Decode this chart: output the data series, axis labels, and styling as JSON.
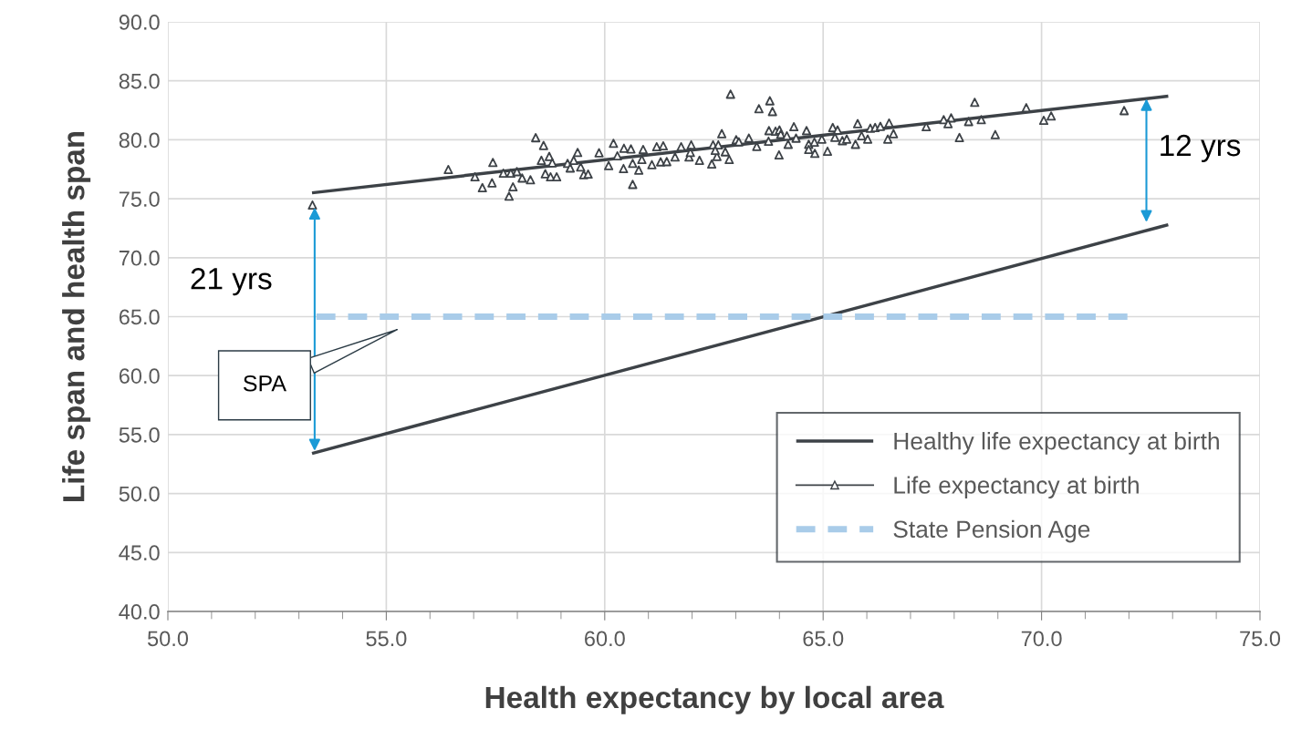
{
  "chart_data": {
    "type": "scatter",
    "xlabel": "Health expectancy by local area",
    "ylabel": "Life span and health span",
    "xlim": [
      50.0,
      75.0
    ],
    "xticks": [
      {
        "value": 50,
        "label": "50.0"
      },
      {
        "value": 55,
        "label": "55.0"
      },
      {
        "value": 60,
        "label": "60.0"
      },
      {
        "value": 65,
        "label": "65.0"
      },
      {
        "value": 70,
        "label": "70.0"
      },
      {
        "value": 75,
        "label": "75.0"
      }
    ],
    "ylim": [
      40.0,
      90.0
    ],
    "yticks": [
      {
        "value": 40,
        "label": "40.0"
      },
      {
        "value": 45,
        "label": "45.0"
      },
      {
        "value": 50,
        "label": "50.0"
      },
      {
        "value": 55,
        "label": "55.0"
      },
      {
        "value": 60,
        "label": "60.0"
      },
      {
        "value": 65,
        "label": "65.0"
      },
      {
        "value": 70,
        "label": "70.0"
      },
      {
        "value": 75,
        "label": "75.0"
      },
      {
        "value": 80,
        "label": "80.0"
      },
      {
        "value": 85,
        "label": "85.0"
      },
      {
        "value": 90,
        "label": "90.0"
      }
    ],
    "grid": true,
    "legend": "bottom right",
    "annotations": [
      "21 yrs",
      "12 yrs",
      "SPA"
    ],
    "series": [
      {
        "name": "Healthy life expectancy at birth",
        "type": "line",
        "color": "#3d4247",
        "marker": "none",
        "line_style": "solid",
        "x": [
          53.3,
          72.9
        ],
        "values": [
          53.4,
          72.8
        ]
      },
      {
        "name": "Life expectancy at birth",
        "type": "scatter",
        "color": "#3d4247",
        "marker": "triangle",
        "x": [
          53.31,
          56.42,
          57.03,
          57.2,
          57.44,
          57.42,
          57.68,
          57.81,
          57.9,
          57.85,
          57.99,
          58.11,
          58.3,
          58.42,
          58.6,
          58.55,
          58.73,
          58.8,
          58.64,
          58.76,
          58.9,
          59.15,
          59.29,
          59.38,
          59.21,
          59.45,
          59.52,
          59.62,
          59.87,
          60.2,
          60.29,
          60.09,
          60.44,
          60.6,
          60.88,
          60.43,
          60.64,
          60.78,
          60.64,
          60.85,
          61.08,
          61.19,
          61.34,
          61.28,
          61.42,
          61.61,
          61.75,
          61.93,
          61.98,
          61.96,
          62.17,
          62.45,
          62.48,
          62.6,
          62.57,
          62.53,
          62.76,
          62.85,
          62.68,
          62.88,
          63.01,
          63.07,
          63.3,
          63.48,
          63.53,
          63.78,
          63.84,
          63.76,
          63.91,
          64.0,
          63.75,
          63.99,
          64.03,
          64.17,
          64.2,
          64.33,
          64.38,
          64.62,
          64.67,
          64.8,
          64.67,
          64.81,
          64.97,
          65.1,
          65.22,
          65.33,
          65.27,
          65.44,
          65.54,
          65.74,
          65.79,
          65.88,
          66.02,
          66.08,
          66.19,
          66.31,
          66.51,
          66.61,
          66.48,
          67.36,
          67.76,
          67.93,
          67.86,
          68.33,
          68.47,
          68.62,
          68.12,
          68.94,
          69.65,
          70.05,
          70.22,
          71.89
        ],
        "values": [
          74.47,
          77.48,
          76.86,
          75.94,
          78.08,
          76.35,
          77.17,
          75.22,
          76.01,
          77.17,
          77.3,
          76.76,
          76.61,
          80.18,
          79.52,
          78.26,
          78.59,
          78.05,
          77.12,
          76.86,
          76.86,
          78.0,
          78.26,
          78.93,
          77.61,
          77.69,
          77.04,
          77.09,
          78.9,
          79.7,
          78.64,
          77.81,
          79.28,
          79.23,
          79.18,
          77.56,
          78.0,
          77.43,
          76.22,
          78.33,
          77.89,
          79.41,
          79.49,
          78.13,
          78.15,
          78.54,
          79.41,
          78.54,
          79.57,
          78.93,
          78.26,
          77.95,
          79.57,
          79.57,
          78.59,
          79.11,
          78.98,
          78.33,
          80.52,
          83.87,
          80.01,
          79.83,
          80.14,
          79.44,
          82.64,
          83.31,
          82.4,
          80.78,
          80.73,
          80.83,
          79.88,
          78.72,
          80.47,
          80.34,
          79.62,
          81.11,
          80.14,
          80.78,
          79.62,
          79.8,
          79.18,
          78.85,
          80.06,
          79.03,
          81.04,
          80.83,
          80.21,
          79.93,
          80.06,
          79.62,
          81.37,
          80.34,
          80.06,
          80.98,
          81.04,
          81.14,
          81.42,
          80.52,
          80.06,
          81.11,
          81.71,
          81.86,
          81.37,
          81.55,
          83.18,
          81.71,
          80.19,
          80.44,
          82.72,
          81.65,
          82.02,
          82.48
        ]
      },
      {
        "type": "line",
        "color": "#3d4247",
        "marker": "none",
        "line_style": "solid",
        "x": [
          53.3,
          72.9
        ],
        "values": [
          75.5,
          83.7
        ]
      },
      {
        "name": "State Pension Age",
        "type": "line",
        "color": "#a9cce9",
        "marker": "none",
        "line_style": "dashed",
        "x": [
          53.4,
          72.1
        ],
        "values": [
          65.0,
          65.0
        ]
      }
    ]
  }
}
